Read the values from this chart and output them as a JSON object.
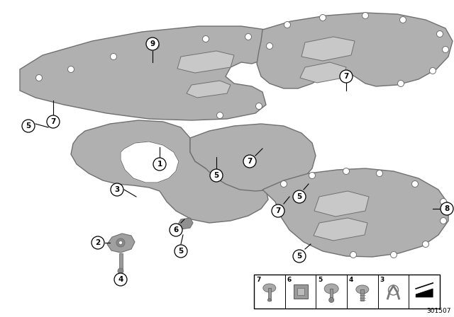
{
  "background_color": "#ffffff",
  "panel_color": "#b0b0b0",
  "panel_light": "#c8c8c8",
  "panel_edge_color": "#707070",
  "diagram_number": "301507",
  "lw": 1.0
}
